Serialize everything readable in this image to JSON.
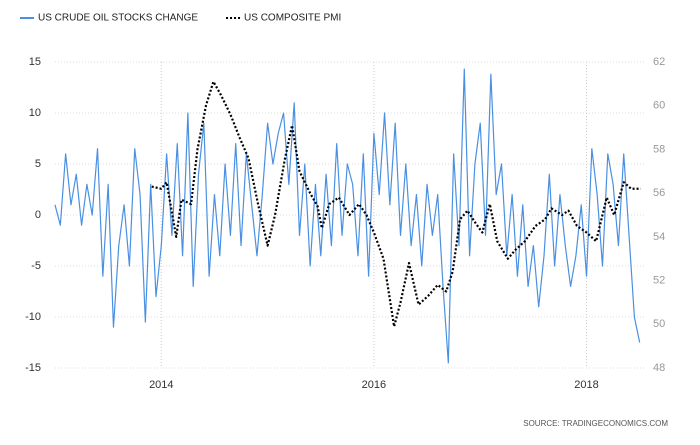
{
  "chart_data": {
    "type": "line",
    "source": "SOURCE: TRADINGECONOMICS.COM",
    "xlim": [
      2013.0,
      2018.55
    ],
    "xticks": [
      2014,
      2016,
      2018
    ],
    "ylim": [
      -15,
      15
    ],
    "yticks": [
      -15,
      -10,
      -5,
      0,
      5,
      10,
      15
    ],
    "y2lim": [
      48,
      62
    ],
    "y2ticks": [
      48,
      50,
      52,
      54,
      56,
      58,
      60,
      62
    ],
    "grid": true,
    "legend": "top-left",
    "series": [
      {
        "name": "US CRUDE OIL STOCKS CHANGE",
        "color": "#4a90e2",
        "style": "solid",
        "x": [
          2013.0,
          2013.05,
          2013.1,
          2013.15,
          2013.2,
          2013.25,
          2013.3,
          2013.35,
          2013.4,
          2013.45,
          2013.5,
          2013.55,
          2013.6,
          2013.65,
          2013.7,
          2013.75,
          2013.8,
          2013.85,
          2013.9,
          2013.95,
          2014.0,
          2014.05,
          2014.1,
          2014.15,
          2014.2,
          2014.25,
          2014.3,
          2014.35,
          2014.4,
          2014.45,
          2014.5,
          2014.55,
          2014.6,
          2014.65,
          2014.7,
          2014.75,
          2014.8,
          2014.85,
          2014.9,
          2014.95,
          2015.0,
          2015.05,
          2015.1,
          2015.15,
          2015.2,
          2015.25,
          2015.3,
          2015.35,
          2015.4,
          2015.45,
          2015.5,
          2015.55,
          2015.6,
          2015.65,
          2015.7,
          2015.75,
          2015.8,
          2015.85,
          2015.9,
          2015.95,
          2016.0,
          2016.05,
          2016.1,
          2016.15,
          2016.2,
          2016.25,
          2016.3,
          2016.35,
          2016.4,
          2016.45,
          2016.5,
          2016.55,
          2016.6,
          2016.65,
          2016.7,
          2016.75,
          2016.8,
          2016.85,
          2016.9,
          2016.95,
          2017.0,
          2017.05,
          2017.1,
          2017.15,
          2017.2,
          2017.25,
          2017.3,
          2017.35,
          2017.4,
          2017.45,
          2017.5,
          2017.55,
          2017.6,
          2017.65,
          2017.7,
          2017.75,
          2017.8,
          2017.85,
          2017.9,
          2017.95,
          2018.0,
          2018.05,
          2018.1,
          2018.15,
          2018.2,
          2018.25,
          2018.3,
          2018.35,
          2018.4,
          2018.45,
          2018.5
        ],
        "values": [
          1,
          -1,
          6,
          1,
          4,
          -1,
          3,
          0,
          6.5,
          -6,
          3,
          -11,
          -3,
          1,
          -5,
          6.5,
          2,
          -10.5,
          3,
          -8,
          -3,
          6,
          -2,
          7,
          -4,
          10,
          -7,
          4,
          9,
          -6,
          2,
          -4,
          5,
          -2,
          7,
          -3,
          6,
          1,
          -4,
          2,
          9,
          5,
          8,
          10,
          3,
          11,
          -2,
          5,
          -5,
          3,
          -4,
          4,
          -3,
          7,
          -2,
          5,
          3,
          -4,
          6,
          -6,
          8,
          2,
          10,
          1,
          9,
          -2,
          5,
          -3,
          2,
          -5,
          3,
          -2,
          2,
          -7,
          -14.5,
          6,
          -3,
          14.3,
          -4,
          5,
          9,
          -2,
          13.8,
          2,
          5,
          -4,
          2,
          -6,
          1,
          -7,
          -3,
          -9,
          -4,
          4,
          -5,
          2,
          -3,
          -7,
          -4,
          1,
          -6,
          6.5,
          2,
          -5,
          6,
          3,
          -3,
          6,
          -2,
          -10,
          -12.5
        ]
      },
      {
        "name": "US COMPOSITE PMI",
        "color": "#000000",
        "style": "dotted",
        "axis": "y2",
        "x": [
          2013.91,
          2014.0,
          2014.05,
          2014.14,
          2014.19,
          2014.28,
          2014.34,
          2014.42,
          2014.49,
          2014.56,
          2014.65,
          2014.74,
          2014.82,
          2014.91,
          2015.0,
          2015.07,
          2015.16,
          2015.23,
          2015.3,
          2015.4,
          2015.47,
          2015.51,
          2015.58,
          2015.67,
          2015.77,
          2015.86,
          2015.93,
          2016.0,
          2016.09,
          2016.19,
          2016.25,
          2016.33,
          2016.42,
          2016.51,
          2016.6,
          2016.68,
          2016.74,
          2016.81,
          2016.88,
          2016.96,
          2017.02,
          2017.09,
          2017.16,
          2017.26,
          2017.33,
          2017.42,
          2017.52,
          2017.61,
          2017.67,
          2017.77,
          2017.83,
          2017.91,
          2018.0,
          2018.09,
          2018.19,
          2018.26,
          2018.35,
          2018.42,
          2018.51
        ],
        "values": [
          56.3,
          56.2,
          56.5,
          54.0,
          55.7,
          55.5,
          58,
          60,
          61.1,
          60.5,
          59.6,
          58.5,
          57.6,
          55.5,
          53.6,
          55,
          57.5,
          59.1,
          57,
          56,
          55.4,
          54.4,
          55.5,
          55.8,
          55,
          55.5,
          55,
          54.2,
          53,
          49.9,
          51,
          52.8,
          50.9,
          51.3,
          51.8,
          51.5,
          52.4,
          54.8,
          55.2,
          54.6,
          54.2,
          55.5,
          53.8,
          53,
          53.4,
          53.8,
          54.5,
          54.8,
          55.3,
          55,
          55.2,
          54.5,
          54.2,
          53.8,
          55.8,
          55,
          56.5,
          56.2,
          56.2
        ]
      }
    ]
  }
}
